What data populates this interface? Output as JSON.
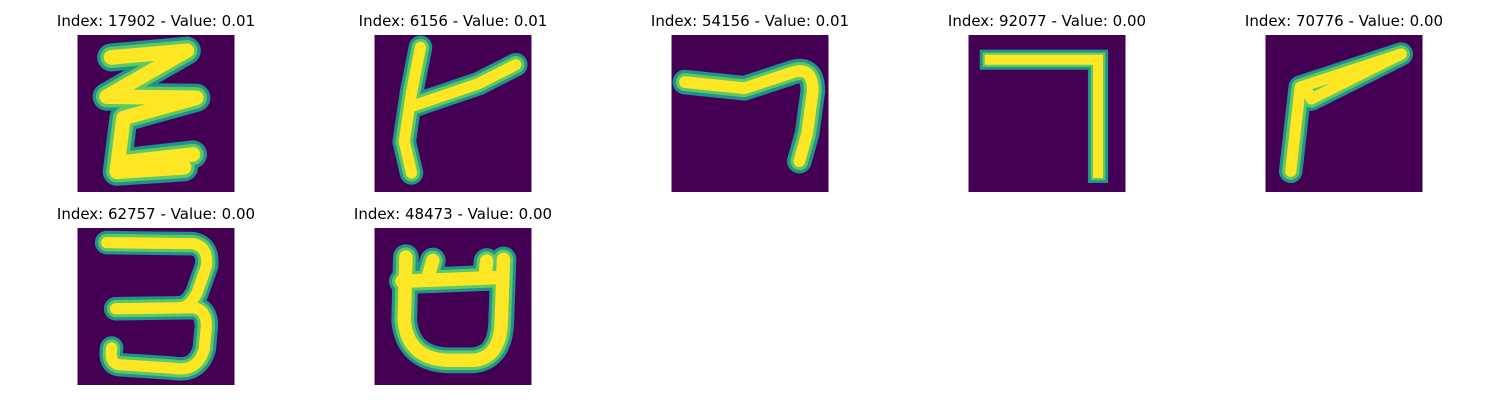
{
  "panels": [
    {
      "title": "Index: 17902 - Value: 0.01",
      "glyph": "E-like stroke"
    },
    {
      "title": "Index: 6156 - Value: 0.01",
      "glyph": "t-like stroke"
    },
    {
      "title": "Index: 54156 - Value: 0.01",
      "glyph": "7-like stroke"
    },
    {
      "title": "Index: 92077 - Value: 0.00",
      "glyph": "7-like stroke"
    },
    {
      "title": "Index: 70776 - Value: 0.00",
      "glyph": "7-like stroke"
    },
    {
      "title": "Index: 62757 - Value: 0.00",
      "glyph": "3-like stroke"
    },
    {
      "title": "Index: 48473 - Value: 0.00",
      "glyph": "U-like stroke"
    }
  ],
  "colors": {
    "background": "#440154",
    "stroke_outer": "#21918c",
    "stroke_mid": "#5ec962",
    "stroke_core": "#fde725"
  }
}
